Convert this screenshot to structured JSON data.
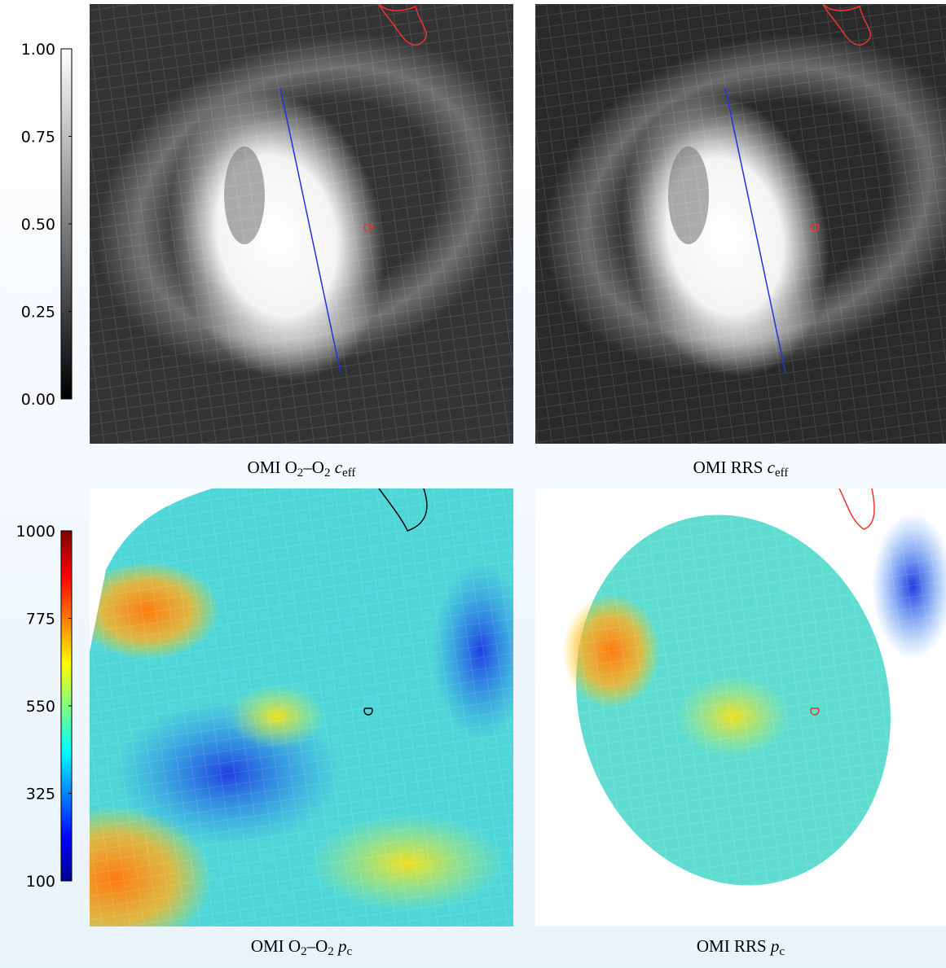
{
  "panels": [
    {
      "caption": [
        "OMI O",
        "2",
        "–O",
        "2",
        "c",
        "eff"
      ]
    },
    {
      "caption": [
        "OMI RRS",
        "c",
        "eff"
      ]
    },
    {
      "caption": [
        "OMI O",
        "2",
        "–O",
        "2",
        "p",
        "c"
      ]
    },
    {
      "caption": [
        "OMI RRS",
        "p",
        "c"
      ]
    }
  ],
  "colorbars": [
    {
      "colormap": "gray",
      "lim": [
        0,
        1
      ],
      "ticks": [
        {
          "value": 0,
          "label": "0.00"
        },
        {
          "value": 0.25,
          "label": "0.25"
        },
        {
          "value": 0.5,
          "label": "0.50"
        },
        {
          "value": 0.75,
          "label": "0.75"
        },
        {
          "value": 1,
          "label": "1.00"
        }
      ]
    },
    {
      "colormap": "jet",
      "lim": [
        100,
        1000
      ],
      "ticks": [
        100,
        325,
        550,
        775,
        1000
      ]
    }
  ]
}
